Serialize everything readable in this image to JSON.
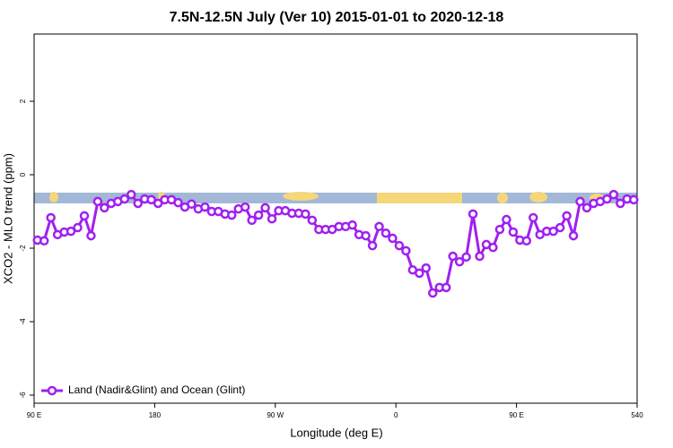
{
  "chart_data": {
    "type": "line",
    "title": "7.5N-12.5N July (Ver 10)   2015-01-01 to 2020-12-18",
    "x_label": "Longitude (deg E)",
    "y_label": "XCO2 - MLO trend (ppm)",
    "xlim": [
      90,
      540
    ],
    "xticks": [
      {
        "value": 90,
        "label": "90 E"
      },
      180,
      {
        "value": 270,
        "label": "90 W"
      },
      {
        "value": 360,
        "label": "0"
      },
      {
        "value": 450,
        "label": "90 E"
      },
      540
    ],
    "ylim": [
      -6.22,
      3.83
    ],
    "yticks": [
      -6,
      -4,
      -2,
      0,
      2
    ],
    "legend": "bottom-left",
    "x": [
      92.5,
      97.5,
      102.5,
      107.5,
      112.5,
      117.5,
      122.5,
      127.5,
      132.5,
      137.5,
      142.5,
      147.5,
      152.5,
      157.5,
      162.5,
      167.5,
      172.5,
      177.5,
      182.5,
      187.5,
      192.5,
      197.5,
      202.5,
      207.5,
      212.5,
      217.5,
      222.5,
      227.5,
      232.5,
      237.5,
      242.5,
      247.5,
      252.5,
      257.5,
      262.5,
      267.5,
      272.5,
      277.5,
      282.5,
      287.5,
      292.5,
      297.5,
      302.5,
      307.5,
      312.5,
      317.5,
      322.5,
      327.5,
      332.5,
      337.5,
      342.5,
      347.5,
      352.5,
      357.5,
      362.5,
      367.5,
      372.5,
      377.5,
      382.5,
      387.5,
      392.5,
      397.5,
      402.5,
      407.5,
      412.5,
      417.5,
      422.5,
      427.5,
      432.5,
      437.5,
      442.5,
      447.5,
      452.5,
      457.5,
      462.5,
      467.5,
      472.5,
      477.5,
      482.5,
      487.5,
      492.5,
      497.5,
      502.5,
      507.5,
      512.5,
      517.5,
      522.5,
      527.5,
      532.5,
      537.5
    ],
    "series": [
      {
        "name": "Land (Nadir&Glint) and Ocean (Glint)",
        "color": "#a020f0",
        "values": [
          -1.78,
          -1.8,
          -1.17,
          -1.63,
          -1.56,
          -1.54,
          -1.44,
          -1.12,
          -1.66,
          -0.73,
          -0.9,
          -0.78,
          -0.73,
          -0.66,
          -0.54,
          -0.78,
          -0.66,
          -0.68,
          -0.78,
          -0.68,
          -0.68,
          -0.76,
          -0.88,
          -0.8,
          -0.93,
          -0.88,
          -1.0,
          -1.0,
          -1.07,
          -1.1,
          -0.93,
          -0.88,
          -1.24,
          -1.1,
          -0.9,
          -1.2,
          -0.98,
          -0.98,
          -1.05,
          -1.05,
          -1.07,
          -1.24,
          -1.49,
          -1.49,
          -1.49,
          -1.41,
          -1.41,
          -1.37,
          -1.63,
          -1.66,
          -1.93,
          -1.41,
          -1.59,
          -1.73,
          -1.93,
          -2.07,
          -2.59,
          -2.68,
          -2.54,
          -3.22,
          -3.07,
          -3.07,
          -2.22,
          -2.37,
          -2.24,
          -1.07,
          -2.22,
          -1.9,
          -1.98,
          -1.49,
          -1.22,
          -1.56,
          -1.78,
          -1.8,
          -1.17,
          -1.63,
          -1.54,
          -1.54,
          -1.44,
          -1.12,
          -1.66,
          -0.73,
          -0.9,
          -0.78,
          -0.73,
          -0.66,
          -0.54,
          -0.78,
          -0.66,
          -0.68
        ]
      }
    ]
  }
}
